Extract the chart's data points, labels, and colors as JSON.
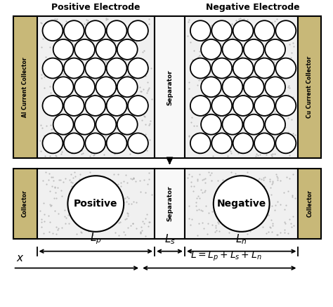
{
  "bg_color": "#ffffff",
  "gold_color": "#c8b878",
  "electrode_bg": "#e0e0e0",
  "separator_bg": "#ffffff",
  "stipple_color": "#c8c8c8",
  "title_pos": "Positive Electrode",
  "title_neg": "Negative Electrode",
  "label_al": "Al Current Collector",
  "label_cu": "Cu Current Collector",
  "label_sep": "Separator",
  "label_col": "Collector",
  "label_pos": "Positive",
  "label_neg": "Negative",
  "lp_label": "$L_p$",
  "ls_label": "$L_s$",
  "ln_label": "$L_n$",
  "x_label": "$x$",
  "L_label": "$L=L_p +L_s +L_n$",
  "fig_width": 4.74,
  "fig_height": 4.37,
  "dpi": 100
}
